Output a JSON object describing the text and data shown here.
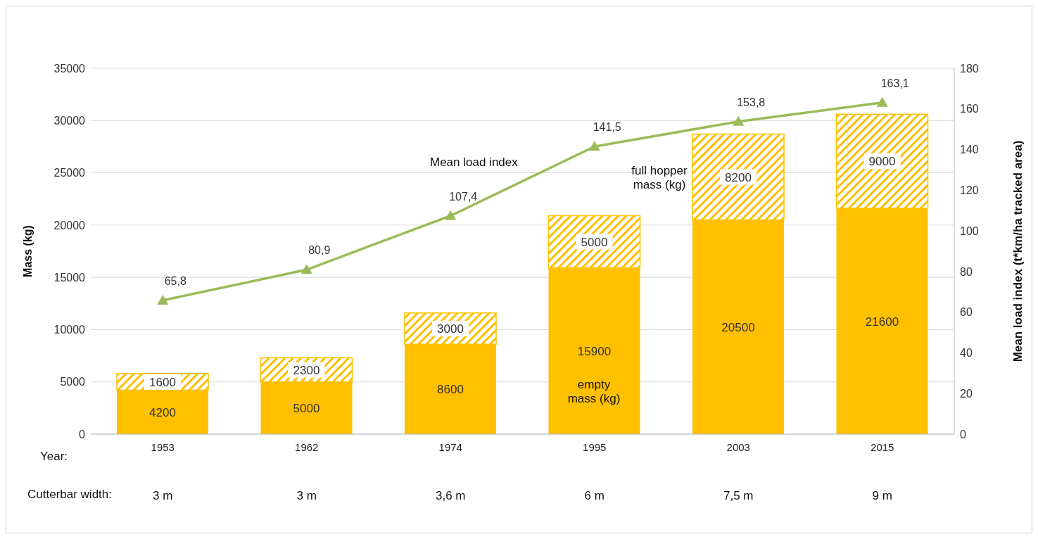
{
  "chart_data": {
    "type": "bar",
    "stacked": true,
    "categories": [
      "1953",
      "1962",
      "1974",
      "1995",
      "2003",
      "2015"
    ],
    "xlabel": "Year:",
    "ylabel": "Mass (kg)",
    "y2label": "Mean load index (t*km/ha tracked area)",
    "series": [
      {
        "color": "#ffc000",
        "values": [
          4200,
          5000,
          8600,
          15900,
          20500,
          21600
        ],
        "value_labels": [
          "4200",
          "5000",
          "8600",
          "15900",
          "20500",
          "21600"
        ]
      },
      {
        "color": "#ffc000",
        "values": [
          1600,
          2300,
          3000,
          5000,
          8200,
          9000
        ],
        "value_labels": [
          "1600",
          "2300",
          "3000",
          "5000",
          "8200",
          "9000"
        ]
      },
      {
        "type": "line",
        "axis": "y2",
        "color": "#9bbb59",
        "marker": "triangle",
        "values": [
          65.8,
          80.9,
          107.4,
          141.5,
          153.8,
          163.1
        ],
        "value_labels": [
          "65,8",
          "80,9",
          "107,4",
          "141,5",
          "153,8",
          "163,1"
        ]
      }
    ],
    "ylim": [
      0,
      35000
    ],
    "yticks": [
      0,
      5000,
      10000,
      15000,
      20000,
      25000,
      30000,
      35000
    ],
    "y2lim": [
      0,
      180
    ],
    "y2ticks": [
      0,
      20,
      40,
      60,
      80,
      100,
      120,
      140,
      160,
      180
    ],
    "grid": "y",
    "legend": false,
    "annotations": [
      "Mean load index",
      "full hopper mass (kg)",
      "empty mass (kg)",
      "Cutterbar width:",
      "3 m",
      "3  m",
      "3,6 m",
      "6 m",
      "7,5 m",
      "9 m"
    ]
  }
}
